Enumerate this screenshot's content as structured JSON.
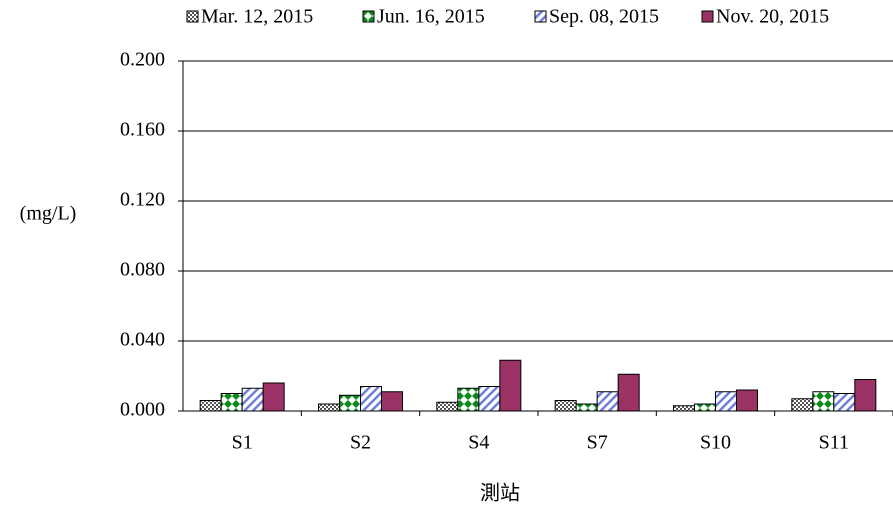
{
  "chart_data": {
    "type": "bar",
    "y_label": "(mg/L)",
    "x_label": "測站",
    "categories": [
      "S1",
      "S2",
      "S4",
      "S7",
      "S10",
      "S11"
    ],
    "series": [
      {
        "name": "Mar. 12, 2015",
        "color": "#555555",
        "values": [
          0.006,
          0.004,
          0.005,
          0.006,
          0.003,
          0.007
        ]
      },
      {
        "name": "Jun. 16, 2015",
        "color": "#0a8a1a",
        "values": [
          0.01,
          0.009,
          0.013,
          0.004,
          0.004,
          0.011
        ]
      },
      {
        "name": "Sep. 08, 2015",
        "color": "#6f7fd8",
        "values": [
          0.013,
          0.014,
          0.014,
          0.011,
          0.011,
          0.01
        ]
      },
      {
        "name": "Nov. 20, 2015",
        "color": "#9b3265",
        "values": [
          0.016,
          0.011,
          0.029,
          0.021,
          0.012,
          0.018
        ]
      }
    ],
    "ylim": [
      0,
      0.2
    ],
    "yticks": [
      {
        "value": 0,
        "label": "0.000"
      },
      {
        "value": 0.04,
        "label": "0.040"
      },
      {
        "value": 0.08,
        "label": "0.080"
      },
      {
        "value": 0.12,
        "label": "0.120"
      },
      {
        "value": 0.16,
        "label": "0.160"
      },
      {
        "value": 0.2,
        "label": "0.200"
      }
    ],
    "grid": true,
    "legend": "top"
  }
}
